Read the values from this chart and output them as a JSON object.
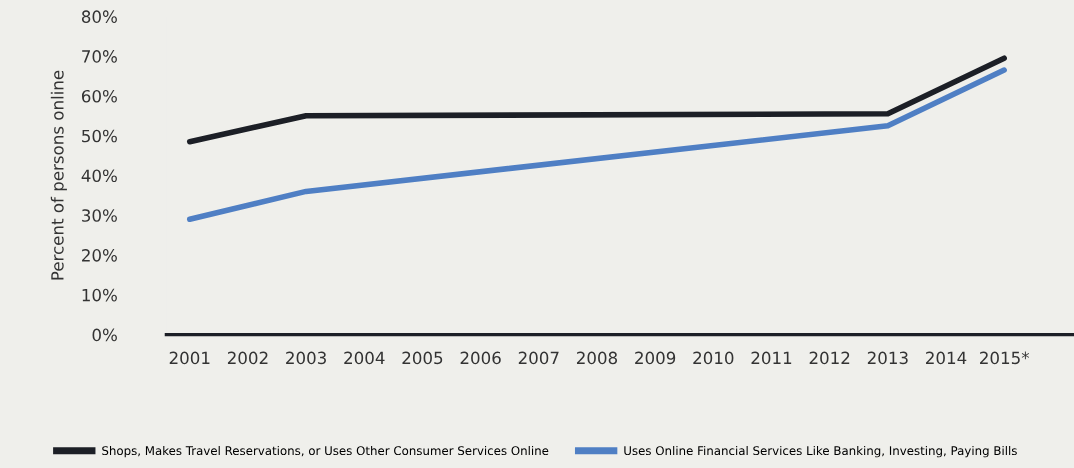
{
  "chart_data": {
    "type": "line",
    "ylabel": "Percent of persons online",
    "x": [
      2001,
      2003,
      2013,
      2015
    ],
    "series": [
      {
        "name": "Shops, Makes Travel Reservations, or Uses Other Consumer Services Online",
        "color": "#1c1f26",
        "values": [
          48.5,
          55,
          55.5,
          69.5
        ]
      },
      {
        "name": "Uses Online Financial Services Like Banking, Investing, Paying Bills",
        "color": "#4f7fc4",
        "values": [
          29,
          36,
          52.5,
          66.5
        ]
      }
    ],
    "xlim": [
      2000.6,
      2016.2
    ],
    "xticks": [
      2001,
      2002,
      2003,
      2004,
      2005,
      2006,
      2007,
      2008,
      2009,
      2010,
      2011,
      2012,
      2013,
      2014,
      {
        "value": 2015,
        "label": "2015*"
      }
    ],
    "ylim": [
      0,
      80
    ],
    "yticks": [
      {
        "value": 0,
        "label": "0%"
      },
      {
        "value": 10,
        "label": "10%"
      },
      {
        "value": 20,
        "label": "20%"
      },
      {
        "value": 30,
        "label": "30%"
      },
      {
        "value": 40,
        "label": "40%"
      },
      {
        "value": 50,
        "label": "50%"
      },
      {
        "value": 60,
        "label": "60%"
      },
      {
        "value": 70,
        "label": "70%"
      },
      {
        "value": 80,
        "label": "80%"
      }
    ],
    "grid": false,
    "legend": "bottom",
    "marker": "none",
    "line_style": "solid"
  }
}
